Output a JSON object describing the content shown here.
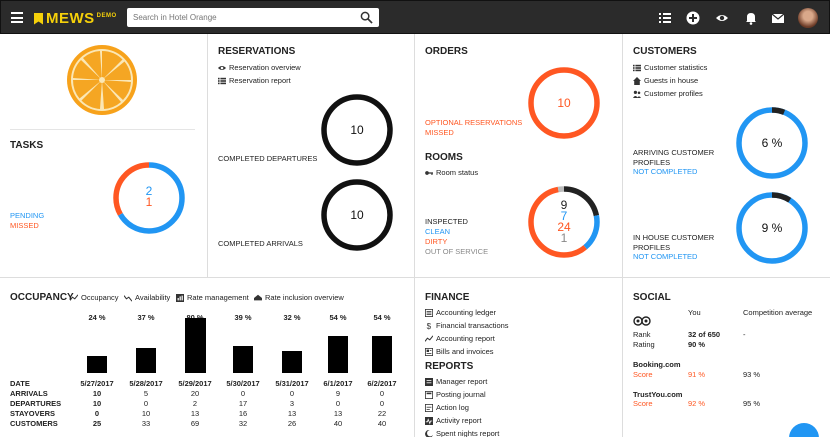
{
  "header": {
    "logo": "MEWS",
    "logo_tag": "DEMO",
    "search_placeholder": "Search in Hotel Orange"
  },
  "tasks": {
    "title": "TASKS",
    "pending_label": "PENDING",
    "missed_label": "MISSED",
    "pending_count": "2",
    "missed_count": "1",
    "colors": {
      "pending": "#2196f3",
      "missed": "#ff5722"
    }
  },
  "reservations": {
    "title": "RESERVATIONS",
    "links": [
      "Reservation overview",
      "Reservation report"
    ],
    "departures_label": "COMPLETED DEPARTURES",
    "departures_value": "10",
    "arrivals_label": "COMPLETED ARRIVALS",
    "arrivals_value": "10"
  },
  "orders": {
    "title": "ORDERS",
    "optional_label": "OPTIONAL RESERVATIONS",
    "missed_label": "MISSED",
    "value": "10"
  },
  "rooms": {
    "title": "ROOMS",
    "link": "Room status",
    "inspected_label": "INSPECTED",
    "clean_label": "CLEAN",
    "dirty_label": "DIRTY",
    "out_label": "OUT OF SERVICE",
    "inspected_value": "9",
    "clean_value": "7",
    "dirty_value": "24",
    "out_value": "1"
  },
  "customers": {
    "title": "CUSTOMERS",
    "links": [
      "Customer statistics",
      "Guests in house",
      "Customer profiles"
    ],
    "arriving_label_1": "ARRIVING CUSTOMER",
    "arriving_label_2": "PROFILES",
    "arriving_status": "NOT COMPLETED",
    "arriving_value": "6 %",
    "arriving_pct": 6,
    "inhouse_label_1": "IN HOUSE CUSTOMER",
    "inhouse_label_2": "PROFILES",
    "inhouse_status": "NOT COMPLETED",
    "inhouse_value": "9 %",
    "inhouse_pct": 9
  },
  "occupancy": {
    "title": "OCCUPANCY",
    "tabs": [
      "Occupancy",
      "Availability",
      "Rate management",
      "Rate inclusion overview"
    ],
    "percents": [
      "24 %",
      "37 %",
      "80 %",
      "39 %",
      "32 %",
      "54 %",
      "54 %"
    ],
    "percent_values": [
      24,
      37,
      80,
      39,
      32,
      54,
      54
    ],
    "row_labels": [
      "DATE",
      "ARRIVALS",
      "DEPARTURES",
      "STAYOVERS",
      "CUSTOMERS"
    ],
    "dates": [
      "5/27/2017",
      "5/28/2017",
      "5/29/2017",
      "5/30/2017",
      "5/31/2017",
      "6/1/2017",
      "6/2/2017"
    ],
    "arrivals": [
      "10",
      "5",
      "20",
      "0",
      "0",
      "9",
      "0"
    ],
    "departures": [
      "10",
      "0",
      "2",
      "17",
      "3",
      "0",
      "0"
    ],
    "stayovers": [
      "0",
      "10",
      "13",
      "16",
      "13",
      "13",
      "22"
    ],
    "customers": [
      "25",
      "33",
      "69",
      "32",
      "26",
      "40",
      "40"
    ]
  },
  "finance": {
    "title": "FINANCE",
    "links": [
      "Accounting ledger",
      "Financial transactions",
      "Accounting report",
      "Bills and invoices"
    ]
  },
  "reports": {
    "title": "REPORTS",
    "links": [
      "Manager report",
      "Posting journal",
      "Action log",
      "Activity report",
      "Spent nights report"
    ]
  },
  "social": {
    "title": "SOCIAL",
    "col_you": "You",
    "col_comp": "Competition average",
    "tripadvisor": {
      "rank_label": "Rank",
      "rank_you": "32 of 650",
      "rank_comp": "-",
      "rating_label": "Rating",
      "rating_you": "90 %"
    },
    "booking": {
      "name": "Booking.com",
      "score_label": "Score",
      "you": "91 %",
      "comp": "93 %"
    },
    "trustyou": {
      "name": "TrustYou.com",
      "score_label": "Score",
      "you": "92 %",
      "comp": "95 %"
    }
  }
}
